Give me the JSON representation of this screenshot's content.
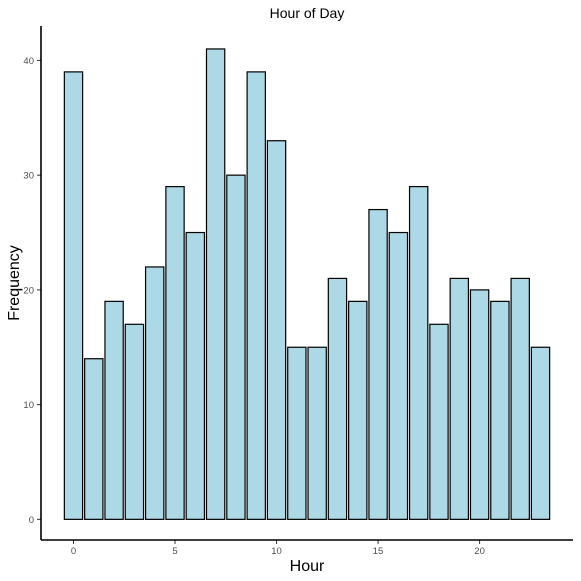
{
  "chart_data": {
    "type": "bar",
    "title": "Hour of Day",
    "xlabel": "Hour",
    "ylabel": "Frequency",
    "x": [
      0,
      1,
      2,
      3,
      4,
      5,
      6,
      7,
      8,
      9,
      10,
      11,
      12,
      13,
      14,
      15,
      16,
      17,
      18,
      19,
      20,
      21,
      22,
      23
    ],
    "values": [
      39,
      14,
      19,
      17,
      22,
      29,
      25,
      41,
      30,
      39,
      33,
      15,
      15,
      21,
      19,
      27,
      25,
      29,
      17,
      21,
      20,
      19,
      21,
      15
    ],
    "xlim": [
      -1.6,
      24.6
    ],
    "ylim": [
      -1.8,
      43
    ],
    "xticks": [
      0,
      5,
      10,
      15,
      20
    ],
    "xtick_labels": [
      "0",
      "5",
      "10",
      "15",
      "20"
    ],
    "yticks": [
      0,
      10,
      20,
      30,
      40
    ],
    "ytick_labels": [
      "0",
      "10",
      "20",
      "30",
      "40"
    ],
    "grid": false,
    "bar_color": "#add8e6",
    "edge_color": "#000000"
  }
}
